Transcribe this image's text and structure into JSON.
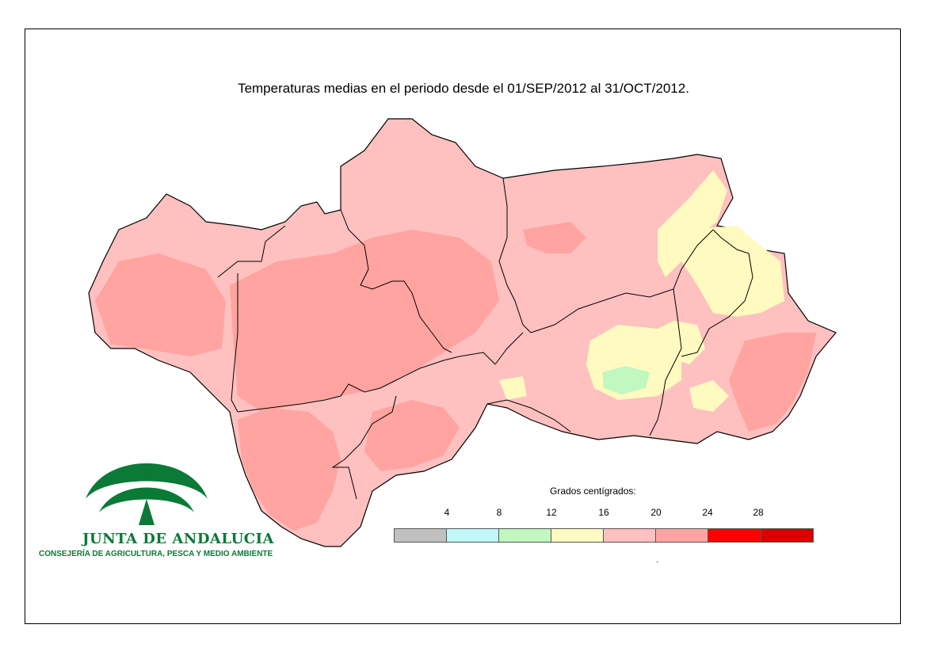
{
  "title": "Temperaturas medias en el periodo desde el 01/SEP/2012 al 31/OCT/2012.",
  "legend": {
    "title": "Grados centígrados:",
    "ticks": [
      "4",
      "8",
      "12",
      "16",
      "20",
      "24",
      "28"
    ],
    "classes": [
      {
        "range": "<4",
        "color": "#c0c0c0"
      },
      {
        "range": "4-8",
        "color": "#bff8f8"
      },
      {
        "range": "8-12",
        "color": "#c0f8c0"
      },
      {
        "range": "12-16",
        "color": "#fffbc0"
      },
      {
        "range": "16-20",
        "color": "#ffc0c0"
      },
      {
        "range": "20-24",
        "color": "#ffa4a0"
      },
      {
        "range": "24-28",
        "color": "#ff0000"
      },
      {
        "range": ">28",
        "color": "#d80000"
      }
    ],
    "footnote": "."
  },
  "logo": {
    "name": "JUNTA DE ANDALUCIA",
    "subtitle": "CONSEJERÍA DE AGRICULTURA, PESCA Y MEDIO AMBIENTE",
    "color": "#0a7a37"
  },
  "map": {
    "region": "Andalucía",
    "dominant_color": "#ffc0c0",
    "warm_color": "#ffa4a0",
    "cool_color": "#fffbc0",
    "coolest_color": "#c0f8c0"
  }
}
